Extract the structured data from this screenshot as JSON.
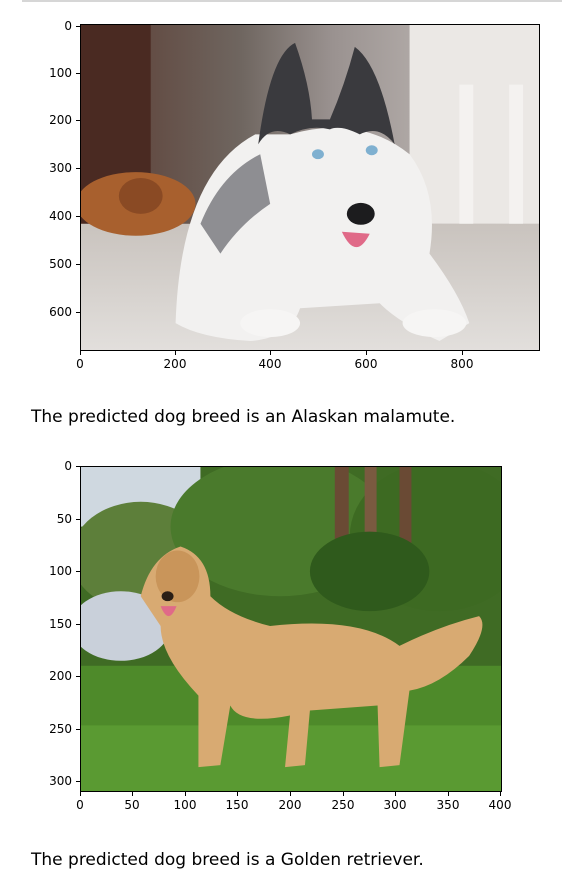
{
  "outputs": [
    {
      "image": {
        "subject": "husky-dog-photo",
        "colors": {
          "floor": "#d7d3cf",
          "background": "#8c7f78",
          "fur_dark": "#3a3a3e",
          "fur_light": "#f2f1f0",
          "sleeping_dog": "#a8602e"
        }
      },
      "y_ticks": [
        "0",
        "100",
        "200",
        "300",
        "400",
        "500",
        "600"
      ],
      "x_ticks": [
        "0",
        "200",
        "400",
        "600",
        "800"
      ],
      "caption": "The predicted dog breed is an Alaskan malamute."
    },
    {
      "image": {
        "subject": "golden-retriever-photo",
        "colors": {
          "grass": "#4e8a2a",
          "foliage": "#3f6b24",
          "trunk": "#6a4a34",
          "fur": "#d8aa72",
          "sky": "#cfd8e0"
        }
      },
      "y_ticks": [
        "0",
        "50",
        "100",
        "150",
        "200",
        "250",
        "300"
      ],
      "x_ticks": [
        "0",
        "50",
        "100",
        "150",
        "200",
        "250",
        "300",
        "350",
        "400"
      ],
      "caption": "The predicted dog breed is a Golden retriever."
    }
  ]
}
